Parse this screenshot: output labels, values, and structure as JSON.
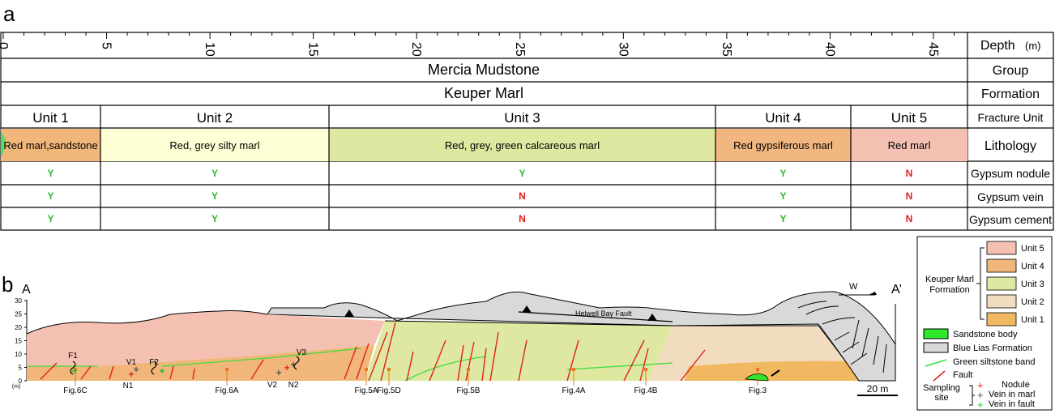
{
  "panel_a_letter": "a",
  "panel_b_letter": "b",
  "depth_ticks": [
    "0",
    "5",
    "10",
    "15",
    "20",
    "25",
    "30",
    "35",
    "40",
    "45"
  ],
  "right_labels": {
    "depth": "Depth",
    "depth_unit": "(m)",
    "group": "Group",
    "formation": "Formation",
    "fracture_unit": "Fracture Unit",
    "lithology": "Lithology",
    "nodule": "Gypsum nodule",
    "vein": "Gypsum vein",
    "cement": "Gypsum cement"
  },
  "group_name": "Mercia Mudstone",
  "formation_name": "Keuper Marl",
  "units": [
    {
      "name": "Unit 1",
      "lithology": "Red marl,sandstone",
      "color": "#f0b67a",
      "nodule": "Y",
      "vein": "Y",
      "cement": "Y"
    },
    {
      "name": "Unit 2",
      "lithology": "Red, grey silty marl",
      "color": "#ffffd6",
      "nodule": "Y",
      "vein": "Y",
      "cement": "Y"
    },
    {
      "name": "Unit 3",
      "lithology": "Red, grey, green calcareous marl",
      "color": "#dfe8a0",
      "nodule": "Y",
      "vein": "N",
      "cement": "N"
    },
    {
      "name": "Unit 4",
      "lithology": "Red gypsiferous marl",
      "color": "#f2b680",
      "nodule": "Y",
      "vein": "Y",
      "cement": "Y"
    },
    {
      "name": "Unit 5",
      "lithology": "Red marl",
      "color": "#f4c0b2",
      "nodule": "N",
      "vein": "N",
      "cement": "N"
    }
  ],
  "section": {
    "start_label": "A",
    "end_label": "A’",
    "direction": "W",
    "fault_name": "Helwell Bay Fault",
    "y_axis_ticks": [
      "0",
      "5",
      "10",
      "15",
      "20",
      "25",
      "30"
    ],
    "y_axis_unit": "(m)",
    "scale_bar": "20 m",
    "figure_labels": [
      "Fig.6C",
      "Fig.6A",
      "Fig.5A",
      "Fig.5D",
      "Fig.5B",
      "Fig.4A",
      "Fig.4B",
      "Fig.3"
    ],
    "site_labels": [
      "F1",
      "F2",
      "V1",
      "N1",
      "V3",
      "V2",
      "N2"
    ]
  },
  "legend": {
    "formation_label_1": "Keuper Marl",
    "formation_label_2": "Formation",
    "units": [
      {
        "name": "Unit 5",
        "color": "#f4c0b2"
      },
      {
        "name": "Unit 4",
        "color": "#f0b67a"
      },
      {
        "name": "Unit 3",
        "color": "#dfe8a0"
      },
      {
        "name": "Unit 2",
        "color": "#f2dcc0"
      },
      {
        "name": "Unit 1",
        "color": "#f0b860"
      }
    ],
    "sandstone": "Sandstone body",
    "blue_lias": "Blue Lias Formation",
    "green_band": "Green siltstone band",
    "fault": "Fault",
    "sampling_1": "Sampling",
    "sampling_2": "site",
    "nodule": "Nodule",
    "vein_marl": "Vein in marl",
    "vein_fault": "Vein in fault"
  },
  "colors": {
    "yes": "#2db82d",
    "no": "#e02020",
    "green_band": "#3ddc3d",
    "fault": "#e02020",
    "blue_lias": "#d9d9d9",
    "sandstone": "#2ee82e"
  }
}
